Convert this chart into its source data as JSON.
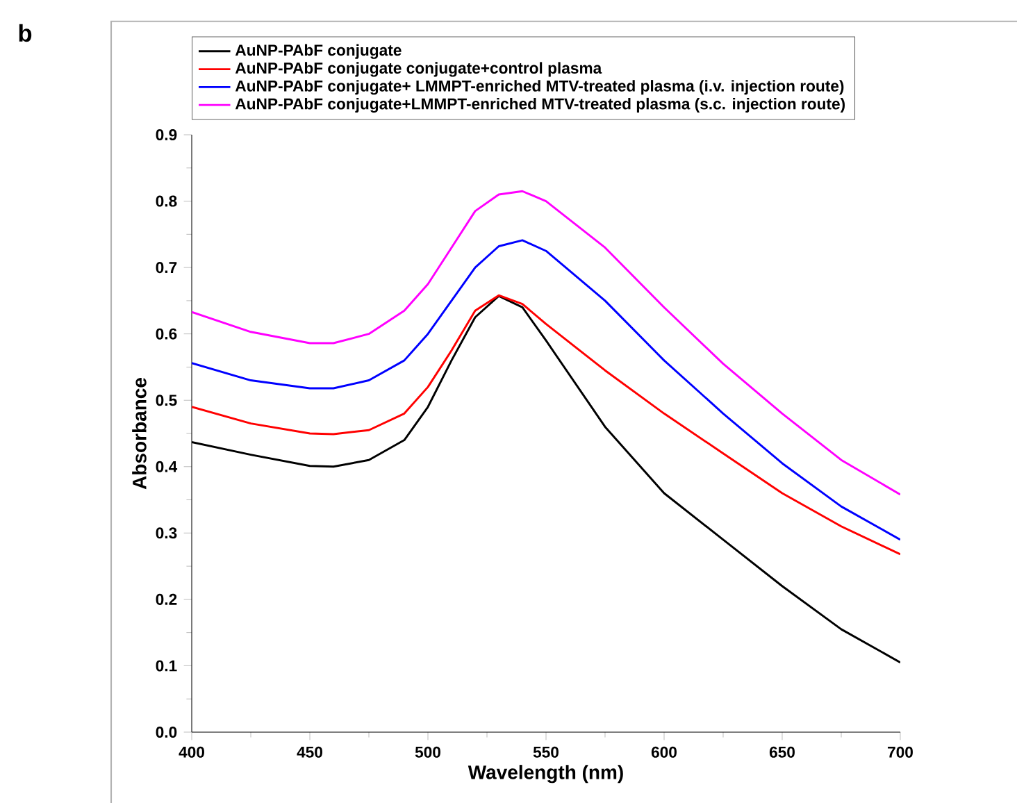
{
  "chart_data": {
    "type": "line",
    "xlabel": "Wavelength (nm)",
    "ylabel": "Absorbance",
    "annotations": [
      "b"
    ],
    "x": [
      400,
      425,
      450,
      460,
      475,
      490,
      500,
      510,
      520,
      530,
      540,
      550,
      575,
      600,
      625,
      650,
      675,
      700
    ],
    "series": [
      {
        "name": "AuNP-PAbF conjugate",
        "color": "#000000",
        "values": [
          0.437,
          0.418,
          0.401,
          0.4,
          0.41,
          0.44,
          0.49,
          0.56,
          0.625,
          0.657,
          0.64,
          0.59,
          0.46,
          0.36,
          0.29,
          0.22,
          0.155,
          0.105
        ]
      },
      {
        "name": "AuNP-PAbF conjugate conjugate+control plasma",
        "color": "#ff0000",
        "values": [
          0.49,
          0.465,
          0.45,
          0.449,
          0.455,
          0.48,
          0.52,
          0.575,
          0.635,
          0.658,
          0.645,
          0.615,
          0.545,
          0.48,
          0.42,
          0.36,
          0.31,
          0.268
        ]
      },
      {
        "name": "AuNP-PAbF conjugate+ LMMPT-enriched MTV-treated plasma (i.v. injection route)",
        "color": "#0000ff",
        "values": [
          0.556,
          0.53,
          0.518,
          0.518,
          0.53,
          0.56,
          0.6,
          0.65,
          0.7,
          0.732,
          0.741,
          0.725,
          0.65,
          0.56,
          0.48,
          0.405,
          0.34,
          0.29
        ]
      },
      {
        "name": "AuNP-PAbF conjugate+LMMPT-enriched MTV-treated plasma (s.c. injection route)",
        "color": "#ff00ff",
        "values": [
          0.633,
          0.603,
          0.586,
          0.586,
          0.6,
          0.635,
          0.675,
          0.73,
          0.785,
          0.81,
          0.815,
          0.8,
          0.73,
          0.64,
          0.555,
          0.48,
          0.41,
          0.358
        ]
      }
    ],
    "xlim": [
      400,
      700
    ],
    "ylim": [
      0,
      0.9
    ],
    "xticks": [
      400,
      450,
      500,
      550,
      600,
      650,
      700
    ],
    "yticks": [
      {
        "value": 0,
        "label": "0.0"
      },
      {
        "value": 0.1,
        "label": "0.1"
      },
      {
        "value": 0.2,
        "label": "0.2"
      },
      {
        "value": 0.3,
        "label": "0.3"
      },
      {
        "value": 0.4,
        "label": "0.4"
      },
      {
        "value": 0.5,
        "label": "0.5"
      },
      {
        "value": 0.6,
        "label": "0.6"
      },
      {
        "value": 0.7,
        "label": "0.7"
      },
      {
        "value": 0.8,
        "label": "0.8"
      },
      {
        "value": 0.9,
        "label": "0.9"
      }
    ],
    "grid": false,
    "legend": "top",
    "marker": "none",
    "line_style": "solid"
  }
}
